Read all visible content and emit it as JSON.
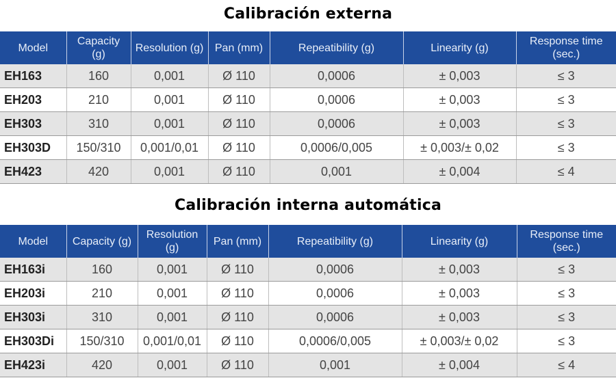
{
  "tables": [
    {
      "title": "Calibración externa",
      "headers": [
        "Model",
        "Capacity (g)",
        "Resolution (g)",
        "Pan (mm)",
        "Repeatibility (g)",
        "Linearity (g)",
        "Response time (sec.)"
      ],
      "rows": [
        [
          "EH163",
          "160",
          "0,001",
          "Ø 110",
          "0,0006",
          "± 0,003",
          "≤ 3"
        ],
        [
          "EH203",
          "210",
          "0,001",
          "Ø 110",
          "0,0006",
          "± 0,003",
          "≤ 3"
        ],
        [
          "EH303",
          "310",
          "0,001",
          "Ø 110",
          "0,0006",
          "± 0,003",
          "≤ 3"
        ],
        [
          "EH303D",
          "150/310",
          "0,001/0,01",
          "Ø 110",
          "0,0006/0,005",
          "± 0,003/± 0,02",
          "≤ 3"
        ],
        [
          "EH423",
          "420",
          "0,001",
          "Ø 110",
          "0,001",
          "± 0,004",
          "≤ 4"
        ]
      ]
    },
    {
      "title": "Calibración interna automática",
      "headers": [
        "Model",
        "Capacity (g)",
        "Resolution (g)",
        "Pan (mm)",
        "Repeatibility (g)",
        "Linearity (g)",
        "Response time (sec.)"
      ],
      "rows": [
        [
          "EH163i",
          "160",
          "0,001",
          "Ø 110",
          "0,0006",
          "± 0,003",
          "≤ 3"
        ],
        [
          "EH203i",
          "210",
          "0,001",
          "Ø 110",
          "0,0006",
          "± 0,003",
          "≤ 3"
        ],
        [
          "EH303i",
          "310",
          "0,001",
          "Ø 110",
          "0,0006",
          "± 0,003",
          "≤ 3"
        ],
        [
          "EH303Di",
          "150/310",
          "0,001/0,01",
          "Ø 110",
          "0,0006/0,005",
          "± 0,003/± 0,02",
          "≤ 3"
        ],
        [
          "EH423i",
          "420",
          "0,001",
          "Ø 110",
          "0,001",
          "± 0,004",
          "≤ 4"
        ]
      ]
    }
  ],
  "colors": {
    "header_bg": "#1f4d9c",
    "row_alt_bg": "#e4e4e4"
  }
}
